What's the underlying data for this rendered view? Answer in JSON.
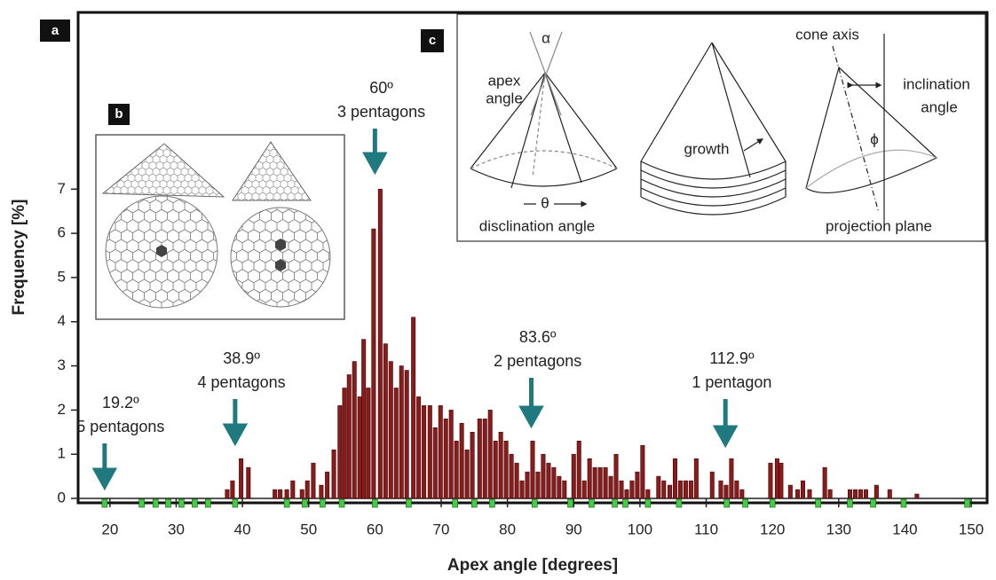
{
  "chart_data": {
    "type": "bar",
    "x_label": "Apex angle [degrees]",
    "y_label": "Frequency [%]",
    "xlim": [
      15.2,
      152.4
    ],
    "ylim": [
      -0.1,
      11
    ],
    "xticks": [
      20,
      30,
      40,
      50,
      60,
      70,
      80,
      90,
      100,
      110,
      120,
      130,
      140,
      150
    ],
    "yticks": [
      0,
      1,
      2,
      3,
      4,
      5,
      6,
      7
    ],
    "color": "#8b1a1a",
    "x": [
      37.7,
      38.5,
      39.8,
      40.9,
      44.9,
      45.7,
      46.7,
      47.6,
      49.0,
      49.8,
      50.7,
      51.9,
      52.8,
      53.8,
      54.7,
      55.4,
      56.1,
      56.9,
      57.7,
      58.3,
      59.0,
      59.8,
      60.8,
      61.6,
      62.4,
      63.2,
      64.0,
      64.8,
      65.8,
      66.6,
      67.4,
      68.3,
      69.1,
      69.9,
      70.7,
      71.5,
      72.3,
      73.1,
      73.9,
      74.7,
      75.8,
      76.6,
      77.4,
      78.2,
      79.0,
      79.8,
      80.6,
      81.4,
      82.2,
      83.0,
      83.8,
      84.6,
      85.4,
      86.2,
      87.0,
      87.8,
      88.6,
      90.0,
      90.8,
      91.6,
      92.4,
      93.2,
      94.0,
      94.8,
      95.6,
      96.4,
      97.2,
      98.0,
      98.8,
      99.6,
      100.4,
      101.2,
      102.8,
      103.6,
      104.5,
      105.3,
      106.1,
      106.9,
      107.7,
      108.5,
      110.9,
      112.2,
      113.0,
      113.8,
      114.6,
      115.4,
      119.7,
      120.7,
      121.3,
      122.7,
      123.8,
      124.6,
      125.6,
      127.9,
      128.7,
      131.7,
      132.5,
      133.3,
      134.1,
      135.7,
      137.7,
      141.8
    ],
    "values": [
      0.2,
      0.4,
      0.9,
      0.7,
      0.2,
      0.2,
      0.2,
      0.4,
      0.2,
      0.4,
      0.8,
      0.3,
      0.6,
      1.1,
      2.1,
      2.5,
      2.8,
      3.1,
      2.3,
      3.6,
      2.5,
      6.1,
      7.0,
      3.5,
      3.1,
      2.5,
      3.0,
      2.9,
      4.1,
      2.3,
      2.1,
      2.1,
      1.6,
      2.1,
      1.8,
      2.0,
      1.3,
      1.7,
      1.1,
      1.5,
      1.8,
      1.8,
      2.0,
      1.3,
      1.5,
      1.3,
      1.0,
      0.8,
      0.4,
      0.6,
      1.3,
      0.6,
      1.0,
      0.8,
      0.7,
      0.5,
      0.4,
      1.0,
      1.3,
      0.4,
      0.9,
      0.7,
      0.7,
      0.7,
      0.5,
      1.0,
      0.4,
      0.2,
      0.4,
      0.6,
      1.2,
      0.2,
      0.5,
      0.4,
      0.3,
      0.9,
      0.4,
      0.4,
      0.4,
      0.9,
      0.6,
      0.4,
      0.3,
      0.9,
      0.4,
      0.2,
      0.8,
      0.9,
      0.8,
      0.3,
      0.2,
      0.4,
      0.2,
      0.7,
      0.2,
      0.2,
      0.2,
      0.2,
      0.2,
      0.3,
      0.2,
      0.1
    ],
    "marker_color": "#44cc44",
    "markers_x": [
      19.2,
      24.8,
      26.9,
      28.8,
      30.8,
      32.8,
      34.8,
      38.9,
      46.7,
      49.4,
      52.1,
      55.0,
      60.0,
      65.1,
      72.1,
      75.0,
      77.7,
      84.1,
      89.5,
      92.7,
      96.2,
      97.8,
      101.2,
      105.9,
      113.1,
      115.9,
      120.0,
      126.9,
      131.7,
      135.2,
      139.8,
      149.4
    ],
    "arrow_color": "#1f7a80",
    "annotations": [
      {
        "x": 19.2,
        "lines": [
          "19.2º",
          "5 pentagons"
        ]
      },
      {
        "x": 38.9,
        "lines": [
          "38.9º",
          "4 pentagons"
        ]
      },
      {
        "x": 60,
        "lines": [
          "60º",
          "3 pentagons"
        ]
      },
      {
        "x": 83.6,
        "lines": [
          "83.6º",
          "2 pentagons"
        ]
      },
      {
        "x": 112.9,
        "lines": [
          "112.9º",
          "1 pentagon"
        ]
      }
    ]
  },
  "panels": {
    "a": "a",
    "b": "b",
    "c": "c"
  },
  "inset_c": {
    "apex_angle": [
      "apex",
      "angle"
    ],
    "alpha": "α",
    "theta": "θ",
    "disclination_angle": "disclination angle",
    "growth": "growth",
    "cone_axis": "cone axis",
    "inclination_angle": [
      "inclination",
      "angle"
    ],
    "phi": "ϕ",
    "projection_plane": "projection plane"
  }
}
